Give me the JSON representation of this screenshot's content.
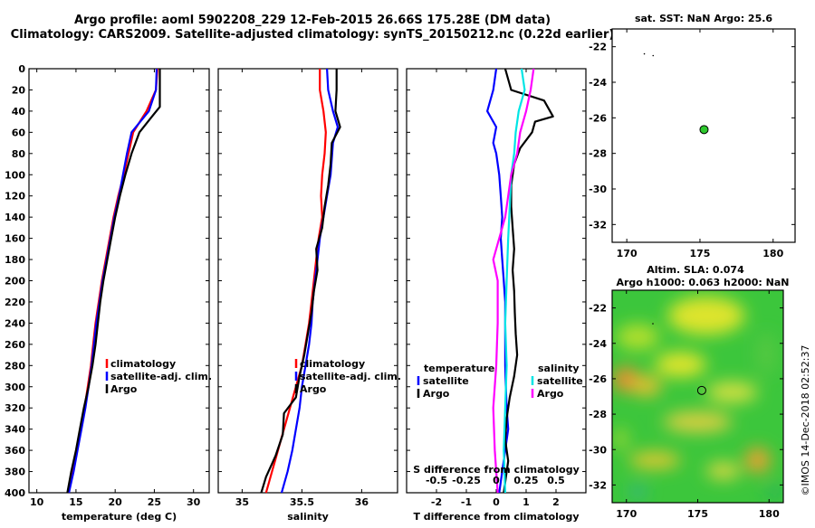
{
  "header": {
    "line1": "Argo profile: aoml 5902208_229 12-Feb-2015 26.66S 175.28E (DM data)",
    "line2": "Climatology: CARS2009. Satellite-adjusted climatology: synTS_20150212.nc (0.22d earlier)"
  },
  "colors": {
    "climatology": "#ff0000",
    "satellite": "#0000ff",
    "argo": "#000000",
    "sat_salinity": "#00e5e5",
    "clim_salinity": "#ff00ff"
  },
  "chart_data": [
    {
      "type": "line",
      "id": "temperature",
      "xlabel": "temperature (deg C)",
      "ylabel": "",
      "xlim": [
        9,
        32
      ],
      "ylim": [
        400,
        0
      ],
      "xticks": [
        "10",
        "15",
        "20",
        "25",
        "30"
      ],
      "xtick_values": [
        10,
        15,
        20,
        25,
        30
      ],
      "yticks": [
        "0",
        "20",
        "40",
        "60",
        "80",
        "100",
        "120",
        "140",
        "160",
        "180",
        "200",
        "220",
        "240",
        "260",
        "280",
        "300",
        "320",
        "340",
        "360",
        "380",
        "400"
      ],
      "legend": [
        "climatology",
        "satellite-adj. clim.",
        "Argo"
      ],
      "series": [
        {
          "name": "climatology",
          "color": "red",
          "points": [
            [
              25.4,
              0
            ],
            [
              25.2,
              20
            ],
            [
              24.0,
              40
            ],
            [
              22.3,
              60
            ],
            [
              21.7,
              80
            ],
            [
              21.1,
              100
            ],
            [
              20.4,
              120
            ],
            [
              19.8,
              140
            ],
            [
              19.3,
              160
            ],
            [
              18.8,
              180
            ],
            [
              18.3,
              200
            ],
            [
              17.9,
              220
            ],
            [
              17.5,
              240
            ],
            [
              17.2,
              260
            ],
            [
              16.9,
              280
            ],
            [
              16.5,
              300
            ],
            [
              16.1,
              320
            ],
            [
              15.6,
              340
            ],
            [
              15.1,
              360
            ],
            [
              14.6,
              380
            ],
            [
              14.0,
              400
            ]
          ]
        },
        {
          "name": "satellite-adj. clim.",
          "color": "blue",
          "points": [
            [
              25.3,
              0
            ],
            [
              25.2,
              20
            ],
            [
              24.3,
              40
            ],
            [
              22.1,
              60
            ],
            [
              21.5,
              80
            ],
            [
              21.0,
              100
            ],
            [
              20.5,
              120
            ],
            [
              19.9,
              140
            ],
            [
              19.4,
              160
            ],
            [
              18.9,
              180
            ],
            [
              18.4,
              200
            ],
            [
              18.0,
              220
            ],
            [
              17.6,
              240
            ],
            [
              17.3,
              260
            ],
            [
              17.0,
              280
            ],
            [
              16.6,
              300
            ],
            [
              16.2,
              320
            ],
            [
              15.7,
              340
            ],
            [
              15.2,
              360
            ],
            [
              14.7,
              380
            ],
            [
              14.1,
              400
            ]
          ]
        },
        {
          "name": "Argo",
          "color": "black",
          "points": [
            [
              25.7,
              0
            ],
            [
              25.7,
              20
            ],
            [
              25.7,
              36
            ],
            [
              24.6,
              46
            ],
            [
              23.1,
              60
            ],
            [
              22.1,
              80
            ],
            [
              21.3,
              100
            ],
            [
              20.6,
              120
            ],
            [
              20.0,
              140
            ],
            [
              19.5,
              160
            ],
            [
              19.0,
              180
            ],
            [
              18.5,
              200
            ],
            [
              18.1,
              220
            ],
            [
              17.8,
              240
            ],
            [
              17.5,
              260
            ],
            [
              17.1,
              280
            ],
            [
              16.6,
              300
            ],
            [
              16.0,
              320
            ],
            [
              15.5,
              340
            ],
            [
              15.0,
              360
            ],
            [
              14.4,
              380
            ],
            [
              13.9,
              400
            ]
          ]
        }
      ]
    },
    {
      "type": "line",
      "id": "salinity",
      "xlabel": "salinity",
      "ylabel": "",
      "xlim": [
        34.8,
        36.3
      ],
      "ylim": [
        400,
        0
      ],
      "xticks": [
        "35",
        "35.5",
        "36"
      ],
      "xtick_values": [
        35,
        35.5,
        36
      ],
      "legend": [
        "climatology",
        "satellite-adj. clim.",
        "Argo"
      ],
      "series": [
        {
          "name": "climatology",
          "color": "red",
          "points": [
            [
              35.65,
              0
            ],
            [
              35.65,
              20
            ],
            [
              35.68,
              40
            ],
            [
              35.7,
              60
            ],
            [
              35.69,
              80
            ],
            [
              35.67,
              100
            ],
            [
              35.66,
              120
            ],
            [
              35.67,
              140
            ],
            [
              35.64,
              160
            ],
            [
              35.62,
              180
            ],
            [
              35.6,
              200
            ],
            [
              35.58,
              220
            ],
            [
              35.56,
              240
            ],
            [
              35.53,
              260
            ],
            [
              35.5,
              280
            ],
            [
              35.45,
              300
            ],
            [
              35.4,
              320
            ],
            [
              35.35,
              340
            ],
            [
              35.3,
              360
            ],
            [
              35.25,
              380
            ],
            [
              35.2,
              400
            ]
          ]
        },
        {
          "name": "satellite-adj. clim.",
          "color": "blue",
          "points": [
            [
              35.71,
              0
            ],
            [
              35.72,
              20
            ],
            [
              35.76,
              40
            ],
            [
              35.8,
              55
            ],
            [
              35.76,
              70
            ],
            [
              35.74,
              100
            ],
            [
              35.71,
              120
            ],
            [
              35.68,
              140
            ],
            [
              35.65,
              160
            ],
            [
              35.63,
              180
            ],
            [
              35.61,
              200
            ],
            [
              35.59,
              220
            ],
            [
              35.58,
              240
            ],
            [
              35.56,
              260
            ],
            [
              35.53,
              280
            ],
            [
              35.5,
              300
            ],
            [
              35.48,
              320
            ],
            [
              35.45,
              340
            ],
            [
              35.42,
              360
            ],
            [
              35.38,
              380
            ],
            [
              35.33,
              400
            ]
          ]
        },
        {
          "name": "Argo",
          "color": "black",
          "points": [
            [
              35.79,
              0
            ],
            [
              35.79,
              20
            ],
            [
              35.78,
              40
            ],
            [
              35.82,
              55
            ],
            [
              35.75,
              70
            ],
            [
              35.74,
              90
            ],
            [
              35.72,
              110
            ],
            [
              35.69,
              130
            ],
            [
              35.67,
              150
            ],
            [
              35.62,
              170
            ],
            [
              35.63,
              190
            ],
            [
              35.6,
              210
            ],
            [
              35.58,
              230
            ],
            [
              35.55,
              250
            ],
            [
              35.52,
              270
            ],
            [
              35.48,
              290
            ],
            [
              35.45,
              310
            ],
            [
              35.35,
              325
            ],
            [
              35.34,
              345
            ],
            [
              35.28,
              365
            ],
            [
              35.2,
              385
            ],
            [
              35.16,
              400
            ]
          ]
        }
      ]
    },
    {
      "type": "line",
      "id": "differences",
      "xlabel": "T difference from climatology",
      "xlabel2": "S difference from climatology",
      "xlim": [
        -3,
        3
      ],
      "ylim": [
        400,
        0
      ],
      "xticks": [
        "-2",
        "-1",
        "0",
        "1",
        "2"
      ],
      "xtick_values": [
        -2,
        -1,
        0,
        1,
        2
      ],
      "xticks_s": [
        "-0.5",
        "-0.25",
        "0",
        "0.25",
        "0.5"
      ],
      "xtick_values_s": [
        -0.5,
        -0.25,
        0,
        0.25,
        0.5
      ],
      "legend_temperature": {
        "title": "temperature",
        "items": [
          "satellite",
          "Argo"
        ]
      },
      "legend_salinity": {
        "title": "salinity",
        "items": [
          "satellite",
          "Argo"
        ]
      },
      "series": [
        {
          "name": "temperature satellite",
          "color": "blue",
          "points": [
            [
              0,
              0
            ],
            [
              -0.1,
              20
            ],
            [
              -0.3,
              40
            ],
            [
              0.0,
              55
            ],
            [
              -0.1,
              70
            ],
            [
              0.0,
              80
            ],
            [
              0.1,
              100
            ],
            [
              0.15,
              120
            ],
            [
              0.2,
              140
            ],
            [
              0.15,
              160
            ],
            [
              0.2,
              180
            ],
            [
              0.25,
              200
            ],
            [
              0.3,
              220
            ],
            [
              0.3,
              240
            ],
            [
              0.3,
              260
            ],
            [
              0.3,
              280
            ],
            [
              0.32,
              300
            ],
            [
              0.35,
              320
            ],
            [
              0.4,
              340
            ],
            [
              0.3,
              360
            ],
            [
              0.2,
              380
            ],
            [
              0.1,
              400
            ]
          ]
        },
        {
          "name": "temperature Argo",
          "color": "black",
          "points": [
            [
              0.3,
              0
            ],
            [
              0.5,
              20
            ],
            [
              1.6,
              30
            ],
            [
              1.9,
              45
            ],
            [
              1.3,
              50
            ],
            [
              1.2,
              60
            ],
            [
              0.8,
              75
            ],
            [
              0.6,
              90
            ],
            [
              0.5,
              110
            ],
            [
              0.5,
              130
            ],
            [
              0.55,
              150
            ],
            [
              0.6,
              170
            ],
            [
              0.55,
              190
            ],
            [
              0.6,
              210
            ],
            [
              0.62,
              230
            ],
            [
              0.65,
              250
            ],
            [
              0.7,
              270
            ],
            [
              0.6,
              290
            ],
            [
              0.45,
              310
            ],
            [
              0.35,
              330
            ],
            [
              0.3,
              350
            ],
            [
              0.4,
              370
            ],
            [
              0.3,
              390
            ],
            [
              0.25,
              400
            ]
          ]
        },
        {
          "name": "salinity satellite",
          "color": "cyan",
          "points": [
            [
              0.85,
              0
            ],
            [
              0.95,
              20
            ],
            [
              0.75,
              40
            ],
            [
              0.65,
              60
            ],
            [
              0.6,
              80
            ],
            [
              0.5,
              100
            ],
            [
              0.45,
              130
            ],
            [
              0.4,
              160
            ],
            [
              0.35,
              200
            ],
            [
              0.3,
              240
            ],
            [
              0.35,
              280
            ],
            [
              0.3,
              320
            ],
            [
              0.25,
              360
            ],
            [
              0.3,
              400
            ]
          ]
        },
        {
          "name": "salinity Argo",
          "color": "magenta",
          "points": [
            [
              1.25,
              0
            ],
            [
              1.15,
              20
            ],
            [
              1.0,
              40
            ],
            [
              0.8,
              60
            ],
            [
              0.7,
              80
            ],
            [
              0.5,
              100
            ],
            [
              0.4,
              120
            ],
            [
              0.3,
              140
            ],
            [
              0.1,
              160
            ],
            [
              -0.1,
              180
            ],
            [
              0.05,
              200
            ],
            [
              0.05,
              240
            ],
            [
              0.0,
              280
            ],
            [
              -0.1,
              320
            ],
            [
              -0.05,
              360
            ],
            [
              0.05,
              400
            ]
          ]
        }
      ]
    },
    {
      "type": "scatter",
      "id": "sst-map",
      "title": "sat. SST: NaN Argo: 25.6",
      "xlim": [
        169,
        181.5
      ],
      "ylim": [
        -33,
        -21
      ],
      "xticks": [
        "170",
        "175",
        "180"
      ],
      "xtick_values": [
        170,
        175,
        180
      ],
      "yticks": [
        "-22",
        "-24",
        "-26",
        "-28",
        "-30",
        "-32"
      ],
      "ytick_values": [
        -22,
        -24,
        -26,
        -28,
        -30,
        -32
      ],
      "points": [
        {
          "lon": 175.28,
          "lat": -26.66
        }
      ]
    },
    {
      "type": "heatmap",
      "id": "sla-map",
      "title": "Altim. SLA: 0.074",
      "title2": "Argo h1000: 0.063 h2000: NaN",
      "xlim": [
        169,
        181
      ],
      "ylim": [
        -33,
        -21
      ],
      "xticks": [
        "170",
        "175",
        "180"
      ],
      "xtick_values": [
        170,
        175,
        180
      ],
      "yticks": [
        "-22",
        "-24",
        "-26",
        "-28",
        "-30",
        "-32"
      ],
      "ytick_values": [
        -22,
        -24,
        -26,
        -28,
        -30,
        -32
      ],
      "points": [
        {
          "lon": 175.28,
          "lat": -26.66
        }
      ]
    }
  ],
  "watermark": "©IMOS 14-Dec-2018 02:52:37"
}
